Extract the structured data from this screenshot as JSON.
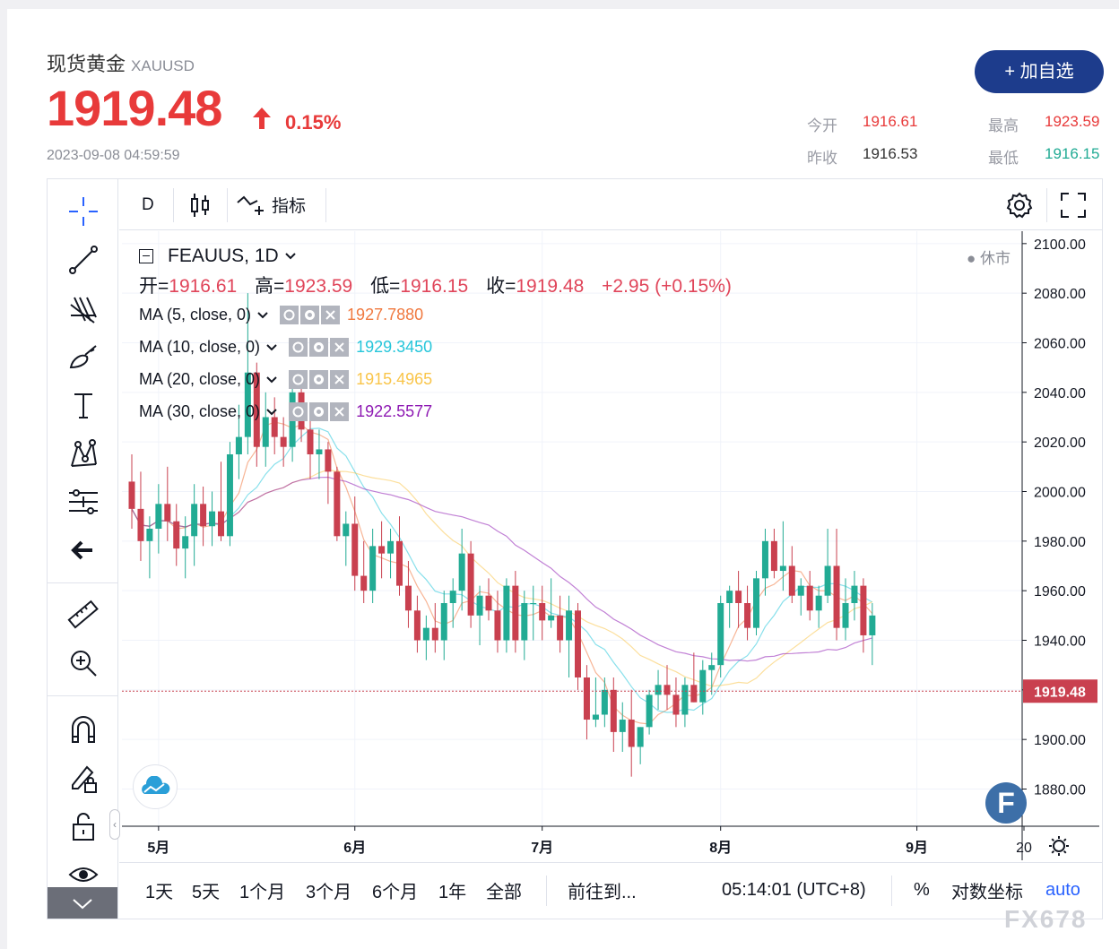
{
  "header": {
    "name": "现货黄金",
    "symbol": "XAUUSD",
    "price": "1919.48",
    "change_pct": "0.15%",
    "timestamp": "2023-09-08 04:59:59",
    "add_button": "+ 加自选",
    "open_label": "今开",
    "open_value": "1916.61",
    "high_label": "最高",
    "high_value": "1923.59",
    "prev_close_label": "昨收",
    "prev_close_value": "1916.53",
    "low_label": "最低",
    "low_value": "1916.15"
  },
  "toolbar": {
    "interval": "D",
    "indicators_label": "指标"
  },
  "legend": {
    "title": "FEAUUS, 1D",
    "status": "● 休市",
    "open_key": "开=",
    "open": "1916.61",
    "high_key": "高=",
    "high": "1923.59",
    "low_key": "低=",
    "low": "1916.15",
    "close_key": "收=",
    "close": "1919.48",
    "change": "+2.95 (+0.15%)",
    "ma": [
      {
        "label": "MA (5, close, 0)",
        "value": "1927.7880",
        "color": "#f0793f"
      },
      {
        "label": "MA (10, close, 0)",
        "value": "1929.3450",
        "color": "#26c6da"
      },
      {
        "label": "MA (20, close, 0)",
        "value": "1915.4965",
        "color": "#f9c54a"
      },
      {
        "label": "MA (30, close, 0)",
        "value": "1922.5577",
        "color": "#8e1ab3"
      }
    ]
  },
  "bottom_bar": {
    "ranges": [
      "1天",
      "5天",
      "1个月",
      "3个月",
      "6个月",
      "1年",
      "全部"
    ],
    "goto": "前往到...",
    "clock": "05:14:01 (UTC+8)",
    "percent": "%",
    "log": "对数坐标",
    "auto": "auto"
  },
  "watermark": "FX678",
  "colors": {
    "up": "#22ab94",
    "down": "#c9404f",
    "bg": "#ffffff",
    "accent": "#1d3c8c"
  },
  "chart_data": {
    "type": "candlestick",
    "title": "FEAUUS, 1D",
    "x_labels": [
      "5月",
      "6月",
      "7月",
      "8月",
      "9月",
      "20"
    ],
    "x_label_index": [
      3,
      25,
      46,
      66,
      88,
      100
    ],
    "y_ticks": [
      "2100.00",
      "2080.00",
      "2060.00",
      "2040.00",
      "2020.00",
      "2000.00",
      "1980.00",
      "1960.00",
      "1940.00",
      "1920.00",
      "1900.00",
      "1880.00"
    ],
    "y_range": [
      1865,
      2105
    ],
    "last_price": "1919.48",
    "candles": [
      [
        2004,
        2015,
        1985,
        1993
      ],
      [
        1993,
        2008,
        1972,
        1980
      ],
      [
        1980,
        1990,
        1965,
        1985
      ],
      [
        1985,
        2003,
        1975,
        1995
      ],
      [
        1995,
        2010,
        1980,
        1988
      ],
      [
        1988,
        1995,
        1970,
        1977
      ],
      [
        1977,
        1990,
        1965,
        1982
      ],
      [
        1982,
        2003,
        1970,
        1995
      ],
      [
        1995,
        2002,
        1978,
        1986
      ],
      [
        1986,
        2000,
        1978,
        1992
      ],
      [
        1992,
        2012,
        1980,
        1982
      ],
      [
        1982,
        2020,
        1978,
        2015
      ],
      [
        2015,
        2035,
        2005,
        2022
      ],
      [
        2022,
        2080,
        2015,
        2048
      ],
      [
        2048,
        2052,
        2010,
        2018
      ],
      [
        2018,
        2040,
        2010,
        2030
      ],
      [
        2030,
        2038,
        2015,
        2022
      ],
      [
        2022,
        2030,
        2010,
        2018
      ],
      [
        2018,
        2048,
        2012,
        2040
      ],
      [
        2040,
        2045,
        2020,
        2025
      ],
      [
        2025,
        2032,
        2005,
        2015
      ],
      [
        2015,
        2025,
        2005,
        2017
      ],
      [
        2017,
        2020,
        1995,
        2008
      ],
      [
        2008,
        2010,
        1980,
        1982
      ],
      [
        1982,
        1992,
        1970,
        1987
      ],
      [
        1987,
        1998,
        1960,
        1966
      ],
      [
        1966,
        1980,
        1955,
        1960
      ],
      [
        1960,
        1985,
        1955,
        1978
      ],
      [
        1978,
        1988,
        1965,
        1975
      ],
      [
        1975,
        1985,
        1965,
        1980
      ],
      [
        1980,
        1990,
        1958,
        1962
      ],
      [
        1962,
        1972,
        1945,
        1952
      ],
      [
        1952,
        1958,
        1935,
        1940
      ],
      [
        1940,
        1950,
        1932,
        1945
      ],
      [
        1945,
        1955,
        1935,
        1940
      ],
      [
        1940,
        1960,
        1932,
        1955
      ],
      [
        1955,
        1965,
        1945,
        1960
      ],
      [
        1960,
        1985,
        1952,
        1975
      ],
      [
        1975,
        1980,
        1945,
        1950
      ],
      [
        1950,
        1962,
        1938,
        1958
      ],
      [
        1958,
        1965,
        1948,
        1952
      ],
      [
        1952,
        1960,
        1935,
        1940
      ],
      [
        1940,
        1965,
        1935,
        1962
      ],
      [
        1962,
        1968,
        1935,
        1940
      ],
      [
        1940,
        1960,
        1932,
        1955
      ],
      [
        1955,
        1962,
        1940,
        1955
      ],
      [
        1955,
        1962,
        1940,
        1948
      ],
      [
        1948,
        1965,
        1945,
        1950
      ],
      [
        1950,
        1958,
        1935,
        1940
      ],
      [
        1940,
        1958,
        1925,
        1952
      ],
      [
        1952,
        1955,
        1920,
        1925
      ],
      [
        1925,
        1930,
        1900,
        1908
      ],
      [
        1908,
        1925,
        1905,
        1910
      ],
      [
        1910,
        1925,
        1905,
        1920
      ],
      [
        1920,
        1925,
        1895,
        1903
      ],
      [
        1903,
        1915,
        1895,
        1908
      ],
      [
        1908,
        1920,
        1885,
        1897
      ],
      [
        1897,
        1905,
        1890,
        1905
      ],
      [
        1905,
        1920,
        1902,
        1918
      ],
      [
        1918,
        1928,
        1912,
        1922
      ],
      [
        1922,
        1930,
        1912,
        1918
      ],
      [
        1918,
        1925,
        1905,
        1910
      ],
      [
        1910,
        1925,
        1905,
        1922
      ],
      [
        1922,
        1935,
        1915,
        1915
      ],
      [
        1915,
        1932,
        1910,
        1928
      ],
      [
        1928,
        1935,
        1918,
        1930
      ],
      [
        1930,
        1958,
        1925,
        1955
      ],
      [
        1955,
        1962,
        1945,
        1960
      ],
      [
        1960,
        1968,
        1945,
        1955
      ],
      [
        1955,
        1962,
        1940,
        1945
      ],
      [
        1945,
        1968,
        1942,
        1965
      ],
      [
        1965,
        1985,
        1958,
        1980
      ],
      [
        1980,
        1985,
        1965,
        1968
      ],
      [
        1968,
        1988,
        1960,
        1970
      ],
      [
        1970,
        1978,
        1955,
        1958
      ],
      [
        1958,
        1965,
        1950,
        1962
      ],
      [
        1962,
        1968,
        1948,
        1952
      ],
      [
        1952,
        1962,
        1945,
        1958
      ],
      [
        1958,
        1985,
        1955,
        1970
      ],
      [
        1970,
        1985,
        1940,
        1945
      ],
      [
        1945,
        1965,
        1940,
        1955
      ],
      [
        1955,
        1968,
        1948,
        1962
      ],
      [
        1962,
        1965,
        1935,
        1942
      ],
      [
        1942,
        1955,
        1930,
        1950
      ]
    ]
  }
}
